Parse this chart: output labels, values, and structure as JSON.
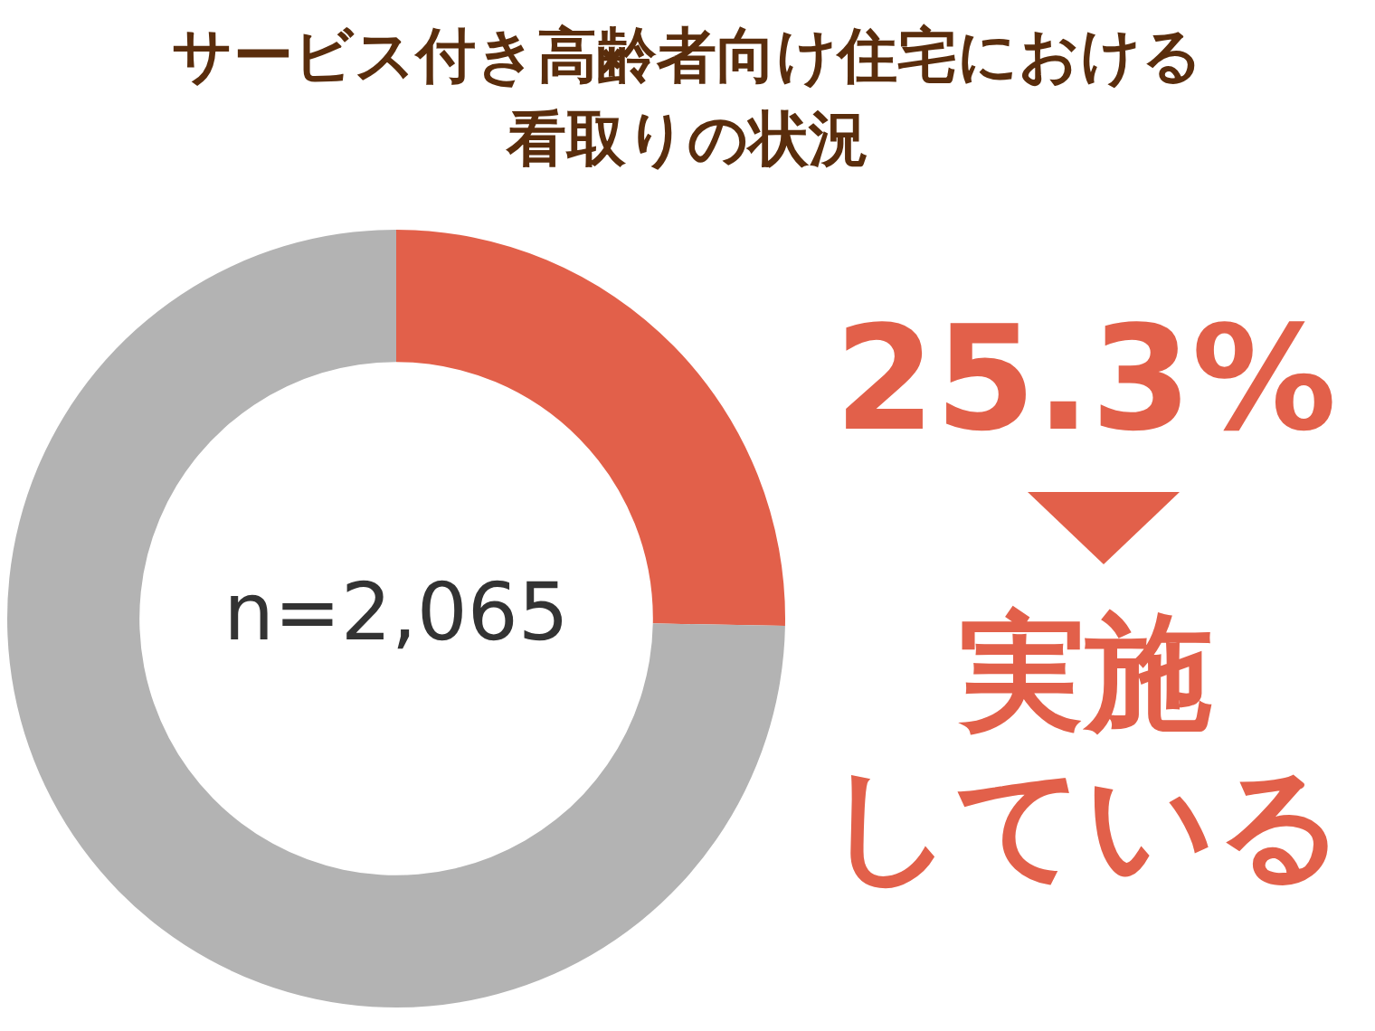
{
  "chart_data": {
    "type": "donut",
    "title": "サービス付き高齢者向け住宅における看取りの状況",
    "categories": [
      "実施している",
      null
    ],
    "values": [
      25.3,
      74.7
    ],
    "colors": [
      "#e2604a",
      "#b3b3b3"
    ],
    "value_labels": [
      "25.3%",
      null
    ],
    "annotations": [
      "n=2,065"
    ],
    "legend": "right"
  }
}
